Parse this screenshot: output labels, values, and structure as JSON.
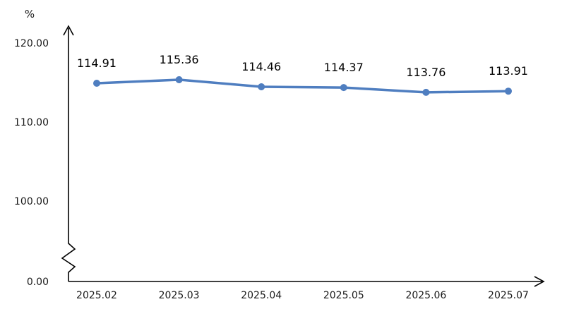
{
  "chart_data": {
    "type": "line",
    "title": "",
    "xlabel": "",
    "ylabel": "%",
    "categories": [
      "2025.02",
      "2025.03",
      "2025.04",
      "2025.05",
      "2025.06",
      "2025.07"
    ],
    "series": [
      {
        "values": [
          114.91,
          115.36,
          114.46,
          114.37,
          113.76,
          113.91
        ],
        "labels": [
          "114.91",
          "115.36",
          "114.46",
          "114.37",
          "113.76",
          "113.91"
        ],
        "color": "#4f7ec0"
      }
    ],
    "y_ticks": [
      {
        "value": 0,
        "label": "0.00"
      },
      {
        "value": 100,
        "label": "100.00"
      },
      {
        "value": 110,
        "label": "110.00"
      },
      {
        "value": 120,
        "label": "120.00"
      }
    ],
    "y_axis_break": {
      "from": 0,
      "to": 100
    },
    "grid": false,
    "legend": "none"
  }
}
